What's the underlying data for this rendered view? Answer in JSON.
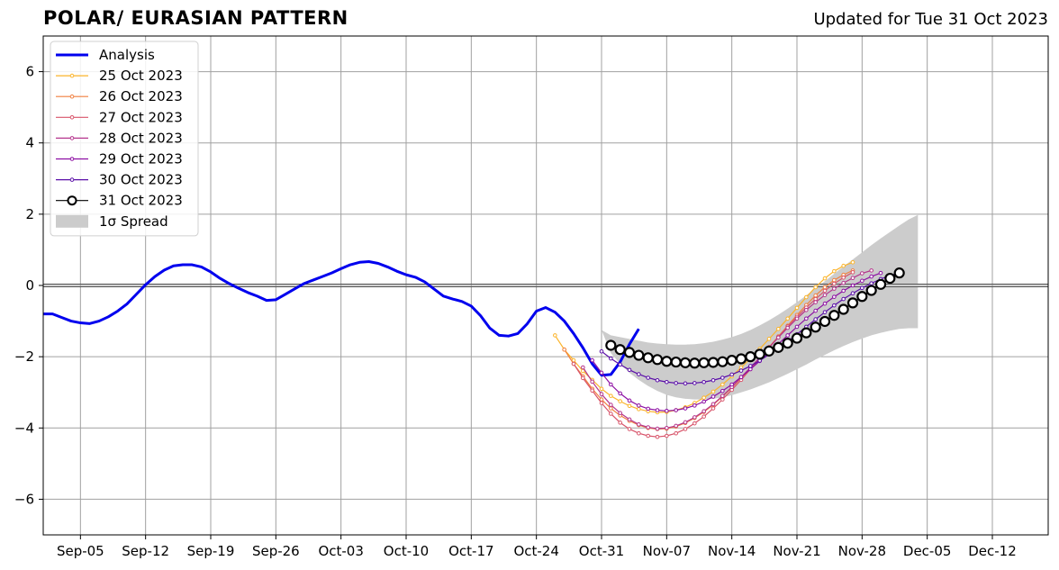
{
  "title": "POLAR/ EURASIAN  PATTERN",
  "subtitle": "Updated for Tue 31 Oct 2023",
  "chart_data": {
    "type": "line",
    "x_tick_labels": [
      "Sep-05",
      "Sep-12",
      "Sep-19",
      "Sep-26",
      "Oct-03",
      "Oct-10",
      "Oct-17",
      "Oct-24",
      "Oct-31",
      "Nov-07",
      "Nov-14",
      "Nov-21",
      "Nov-28",
      "Dec-05",
      "Dec-12"
    ],
    "x_tick_day": [
      4,
      11,
      18,
      25,
      32,
      39,
      46,
      53,
      60,
      67,
      74,
      81,
      88,
      95,
      102
    ],
    "xlim": [
      0,
      108
    ],
    "y_ticks": [
      -6,
      -4,
      -2,
      0,
      2,
      4,
      6
    ],
    "y_tick_labels": [
      "−6",
      "−4",
      "−2",
      "0",
      "2",
      "4",
      "6"
    ],
    "ylim": [
      -7,
      7
    ],
    "grid": true,
    "legend_position": "top-left",
    "analysis": {
      "name": "Analysis",
      "color": "#0000ee",
      "values": [
        -0.8,
        -0.8,
        -0.9,
        -1.0,
        -1.05,
        -1.07,
        -1.0,
        -0.88,
        -0.72,
        -0.52,
        -0.25,
        0.02,
        0.25,
        0.43,
        0.55,
        0.58,
        0.58,
        0.52,
        0.38,
        0.2,
        0.05,
        -0.08,
        -0.2,
        -0.3,
        -0.42,
        -0.4,
        -0.25,
        -0.1,
        0.05,
        0.15,
        0.25,
        0.35,
        0.47,
        0.58,
        0.65,
        0.67,
        0.62,
        0.52,
        0.4,
        0.3,
        0.23,
        0.1,
        -0.1,
        -0.3,
        -0.38,
        -0.45,
        -0.58,
        -0.85,
        -1.2,
        -1.4,
        -1.42,
        -1.35,
        -1.08,
        -0.72,
        -0.62,
        -0.75,
        -1.0,
        -1.35,
        -1.75,
        -2.2,
        -2.52,
        -2.5,
        -2.15,
        -1.65,
        -1.22
      ]
    },
    "analysis_start_day": 0,
    "forecasts": [
      {
        "name": "25 Oct 2023",
        "color": "#fbb42a",
        "start_day": 55,
        "values": [
          -1.4,
          -1.8,
          -2.1,
          -2.4,
          -2.65,
          -2.9,
          -3.1,
          -3.25,
          -3.38,
          -3.47,
          -3.53,
          -3.56,
          -3.55,
          -3.5,
          -3.42,
          -3.3,
          -3.15,
          -2.98,
          -2.78,
          -2.55,
          -2.3,
          -2.05,
          -1.78,
          -1.5,
          -1.22,
          -0.93,
          -0.63,
          -0.33,
          -0.05,
          0.2,
          0.4,
          0.55,
          0.65
        ]
      },
      {
        "name": "26 Oct 2023",
        "color": "#f07f3f",
        "start_day": 56,
        "values": [
          -1.8,
          -2.2,
          -2.55,
          -2.9,
          -3.2,
          -3.45,
          -3.65,
          -3.8,
          -3.92,
          -4.0,
          -4.03,
          -4.02,
          -3.96,
          -3.86,
          -3.72,
          -3.55,
          -3.35,
          -3.12,
          -2.87,
          -2.6,
          -2.32,
          -2.03,
          -1.73,
          -1.43,
          -1.13,
          -0.83,
          -0.55,
          -0.28,
          -0.05,
          0.15,
          0.3,
          0.42
        ]
      },
      {
        "name": "27 Oct 2023",
        "color": "#d8546a",
        "start_day": 57,
        "values": [
          -2.2,
          -2.6,
          -2.95,
          -3.3,
          -3.6,
          -3.85,
          -4.03,
          -4.15,
          -4.22,
          -4.25,
          -4.22,
          -4.15,
          -4.03,
          -3.87,
          -3.68,
          -3.45,
          -3.2,
          -2.93,
          -2.65,
          -2.35,
          -2.05,
          -1.75,
          -1.45,
          -1.15,
          -0.88,
          -0.62,
          -0.38,
          -0.15,
          0.05,
          0.22,
          0.37
        ]
      },
      {
        "name": "28 Oct 2023",
        "color": "#b5368d",
        "start_day": 58,
        "values": [
          -2.3,
          -2.7,
          -3.05,
          -3.35,
          -3.58,
          -3.76,
          -3.9,
          -3.98,
          -4.02,
          -4.0,
          -3.94,
          -3.84,
          -3.7,
          -3.53,
          -3.33,
          -3.1,
          -2.85,
          -2.58,
          -2.3,
          -2.02,
          -1.74,
          -1.46,
          -1.19,
          -0.93,
          -0.69,
          -0.47,
          -0.27,
          -0.09,
          0.07,
          0.21,
          0.34,
          0.42
        ]
      },
      {
        "name": "29 Oct 2023",
        "color": "#8d0fa3",
        "start_day": 59,
        "values": [
          -2.1,
          -2.45,
          -2.78,
          -3.03,
          -3.23,
          -3.37,
          -3.46,
          -3.5,
          -3.52,
          -3.5,
          -3.45,
          -3.37,
          -3.26,
          -3.12,
          -2.96,
          -2.78,
          -2.57,
          -2.35,
          -2.12,
          -1.88,
          -1.64,
          -1.4,
          -1.16,
          -0.93,
          -0.71,
          -0.51,
          -0.32,
          -0.15,
          0.0,
          0.13,
          0.25,
          0.35
        ]
      },
      {
        "name": "30 Oct 2023",
        "color": "#5a0ea8",
        "start_day": 60,
        "values": [
          -1.85,
          -2.05,
          -2.22,
          -2.37,
          -2.49,
          -2.59,
          -2.66,
          -2.71,
          -2.74,
          -2.75,
          -2.74,
          -2.71,
          -2.66,
          -2.59,
          -2.5,
          -2.39,
          -2.26,
          -2.11,
          -1.94,
          -1.76,
          -1.57,
          -1.37,
          -1.16,
          -0.95,
          -0.75,
          -0.56,
          -0.38,
          -0.22,
          -0.07,
          0.06,
          0.18,
          0.28,
          0.35
        ]
      },
      {
        "name": "31 Oct 2023",
        "color": "#000000",
        "start_day": 61,
        "values": [
          -1.68,
          -1.8,
          -1.88,
          -1.96,
          -2.03,
          -2.08,
          -2.13,
          -2.15,
          -2.17,
          -2.18,
          -2.17,
          -2.16,
          -2.14,
          -2.1,
          -2.06,
          -2.0,
          -1.93,
          -1.84,
          -1.74,
          -1.62,
          -1.48,
          -1.33,
          -1.17,
          -1.01,
          -0.84,
          -0.67,
          -0.49,
          -0.31,
          -0.14,
          0.03,
          0.2,
          0.35
        ]
      }
    ],
    "spread": {
      "name": "1σ Spread",
      "color": "#cccccc",
      "start_day": 60,
      "upper": [
        -1.25,
        -1.4,
        -1.45,
        -1.5,
        -1.55,
        -1.6,
        -1.63,
        -1.65,
        -1.66,
        -1.66,
        -1.65,
        -1.62,
        -1.58,
        -1.52,
        -1.45,
        -1.36,
        -1.25,
        -1.12,
        -0.98,
        -0.82,
        -0.65,
        -0.47,
        -0.28,
        -0.08,
        0.12,
        0.33,
        0.53,
        0.73,
        0.93,
        1.13,
        1.32,
        1.5,
        1.68,
        1.85,
        1.98
      ],
      "lower": [
        -1.25,
        -1.9,
        -2.2,
        -2.45,
        -2.65,
        -2.82,
        -2.96,
        -3.07,
        -3.14,
        -3.18,
        -3.2,
        -3.2,
        -3.18,
        -3.14,
        -3.08,
        -3.0,
        -2.92,
        -2.82,
        -2.72,
        -2.6,
        -2.48,
        -2.35,
        -2.22,
        -2.08,
        -1.95,
        -1.82,
        -1.7,
        -1.59,
        -1.49,
        -1.4,
        -1.33,
        -1.27,
        -1.22,
        -1.2,
        -1.2
      ]
    }
  }
}
